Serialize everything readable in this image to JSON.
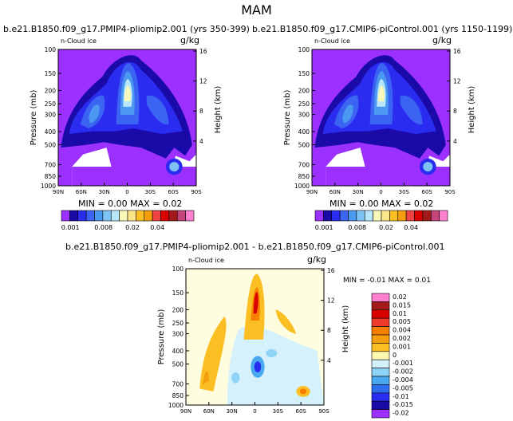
{
  "main_title": "MAM",
  "panels": [
    {
      "title": "b.e21.B1850.f09_g17.PMIP4-pliomip2.001 (yrs 350-399)",
      "variable": "n-Cloud ice",
      "units": "g/kg",
      "stats": "MIN =   0.00  MAX =   0.02"
    },
    {
      "title": "b.e21.B1850.f09_g17.CMIP6-piControl.001 (yrs 1150-1199)",
      "variable": "n-Cloud ice",
      "units": "g/kg",
      "stats": "MIN =   0.00  MAX =   0.02"
    },
    {
      "title": "b.e21.B1850.f09_g17.PMIP4-pliomip2.001 - b.e21.B1850.f09_g17.CMIP6-piControl.001",
      "variable": "n-Cloud ice",
      "units": "g/kg",
      "stats": "MIN =   -0.01    MAX =    0.01"
    }
  ],
  "chart_data": [
    {
      "type": "heatmap",
      "title": "b.e21.B1850.f09_g17.PMIP4-pliomip2.001 (yrs 350-399)",
      "ylabel": "Pressure (mb)",
      "ylabel_right": "Height (km)",
      "xticks": [
        "90N",
        "60N",
        "30N",
        "0",
        "30S",
        "60S",
        "90S"
      ],
      "yticks": [
        "100",
        "150",
        "200",
        "250",
        "300",
        "400",
        "500",
        "700",
        "850",
        "1000"
      ],
      "yticks_right": [
        "16",
        "12",
        "8",
        "4"
      ],
      "ylim": [
        1000,
        100
      ],
      "min": 0.0,
      "max": 0.02,
      "colorbar_labels": [
        "0.001",
        "0.008",
        "0.02",
        "0.04"
      ]
    },
    {
      "type": "heatmap",
      "title": "b.e21.B1850.f09_g17.CMIP6-piControl.001 (yrs 1150-1199)",
      "ylabel": "Pressure (mb)",
      "ylabel_right": "Height (km)",
      "xticks": [
        "90N",
        "60N",
        "30N",
        "0",
        "30S",
        "60S",
        "90S"
      ],
      "yticks": [
        "100",
        "150",
        "200",
        "250",
        "300",
        "400",
        "500",
        "700",
        "850",
        "1000"
      ],
      "yticks_right": [
        "16",
        "12",
        "8",
        "4"
      ],
      "ylim": [
        1000,
        100
      ],
      "min": 0.0,
      "max": 0.02,
      "colorbar_labels": [
        "0.001",
        "0.008",
        "0.02",
        "0.04"
      ]
    },
    {
      "type": "heatmap",
      "title": "b.e21.B1850.f09_g17.PMIP4-pliomip2.001 - b.e21.B1850.f09_g17.CMIP6-piControl.001",
      "ylabel": "Pressure (mb)",
      "ylabel_right": "Height (km)",
      "xticks": [
        "90N",
        "60N",
        "30N",
        "0",
        "30S",
        "60S",
        "90S"
      ],
      "yticks": [
        "100",
        "150",
        "200",
        "250",
        "300",
        "400",
        "500",
        "700",
        "850",
        "1000"
      ],
      "yticks_right": [
        "16",
        "12",
        "8",
        "4"
      ],
      "ylim": [
        1000,
        100
      ],
      "min": -0.01,
      "max": 0.01,
      "colorbar_labels": [
        "0.02",
        "0.015",
        "0.01",
        "0.005",
        "0.004",
        "0.002",
        "0.001",
        "0",
        "-0.001",
        "-0.002",
        "-0.004",
        "-0.005",
        "-0.01",
        "-0.015",
        "-0.02"
      ]
    }
  ],
  "colors": {
    "abs_scale": [
      "#9b30ff",
      "#1a0aa8",
      "#2a2cf0",
      "#3c64f2",
      "#4a98f0",
      "#7fc3f5",
      "#b8e6fb",
      "#f8f8b8",
      "#fde68a",
      "#fbbf24",
      "#f59e0b",
      "#ef4444",
      "#d90000",
      "#a31a1a",
      "#c4457a",
      "#ff7fd0"
    ],
    "diff_scale": [
      "#ff7fd0",
      "#a31a1a",
      "#d90000",
      "#ef3b2c",
      "#f77f00",
      "#f59e0b",
      "#fbbf24",
      "#fdf7b0",
      "#d5f1fb",
      "#8fd3f7",
      "#4aa8f0",
      "#2e6ff2",
      "#2a2cf0",
      "#1a0aa8",
      "#9b30ff"
    ]
  }
}
